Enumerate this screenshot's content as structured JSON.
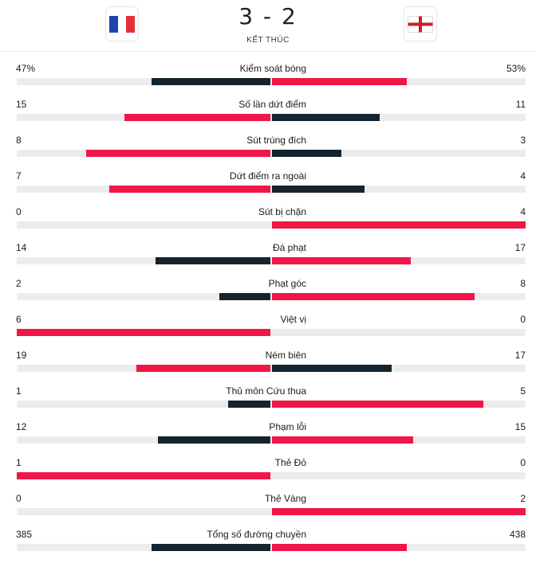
{
  "match": {
    "home_team_icon": "france-flag-icon",
    "away_team_icon": "england-flag-icon",
    "score": "3 - 2",
    "status": "KẾT THÚC"
  },
  "colors": {
    "winner_bar": "#ef1747",
    "loser_bar": "#15242e",
    "track": "#ececec"
  },
  "stats": [
    {
      "label": "Kiểm soát bóng",
      "home": "47%",
      "away": "53%",
      "home_share": 0.47,
      "away_share": 0.53
    },
    {
      "label": "Số lần dứt điểm",
      "home": "15",
      "away": "11",
      "home_share": 0.577,
      "away_share": 0.423
    },
    {
      "label": "Sút trúng đích",
      "home": "8",
      "away": "3",
      "home_share": 0.727,
      "away_share": 0.273
    },
    {
      "label": "Dứt điểm ra ngoài",
      "home": "7",
      "away": "4",
      "home_share": 0.636,
      "away_share": 0.364
    },
    {
      "label": "Sút bị chặn",
      "home": "0",
      "away": "4",
      "home_share": 0,
      "away_share": 1
    },
    {
      "label": "Đá phạt",
      "home": "14",
      "away": "17",
      "home_share": 0.452,
      "away_share": 0.548
    },
    {
      "label": "Phạt góc",
      "home": "2",
      "away": "8",
      "home_share": 0.2,
      "away_share": 0.8
    },
    {
      "label": "Việt vị",
      "home": "6",
      "away": "0",
      "home_share": 1,
      "away_share": 0
    },
    {
      "label": "Ném biên",
      "home": "19",
      "away": "17",
      "home_share": 0.528,
      "away_share": 0.472
    },
    {
      "label": "Thủ môn Cứu thua",
      "home": "1",
      "away": "5",
      "home_share": 0.167,
      "away_share": 0.833
    },
    {
      "label": "Phạm lỗi",
      "home": "12",
      "away": "15",
      "home_share": 0.444,
      "away_share": 0.556
    },
    {
      "label": "Thẻ Đỏ",
      "home": "1",
      "away": "0",
      "home_share": 1,
      "away_share": 0
    },
    {
      "label": "Thẻ Vàng",
      "home": "0",
      "away": "2",
      "home_share": 0,
      "away_share": 1
    },
    {
      "label": "Tổng số đường chuyền",
      "home": "385",
      "away": "438",
      "home_share": 0.468,
      "away_share": 0.532
    }
  ]
}
